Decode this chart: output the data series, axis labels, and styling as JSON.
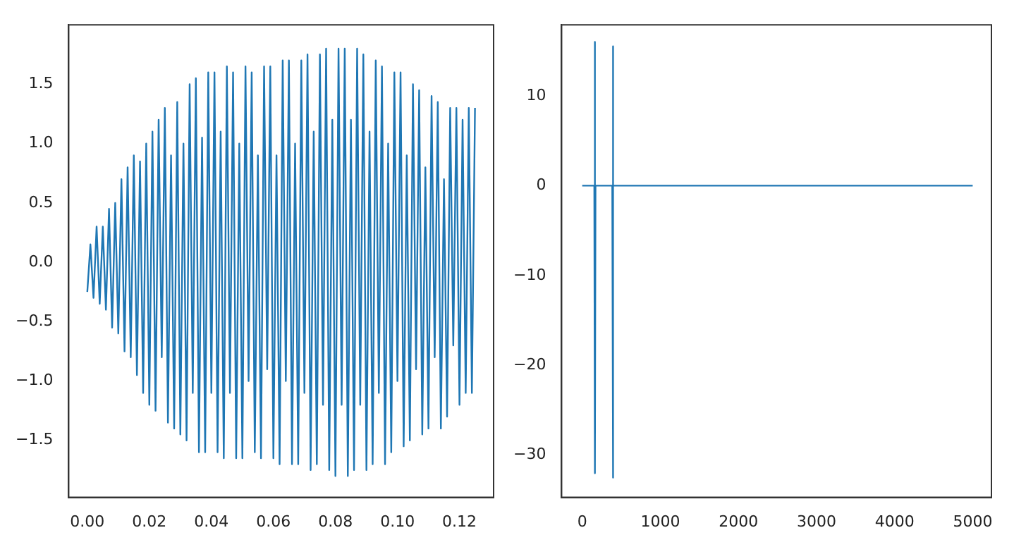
{
  "chart_data": [
    {
      "type": "line",
      "color": "#1f77b4",
      "x": [
        0,
        0.001,
        0.002,
        0.003,
        0.004,
        0.005,
        0.006,
        0.007,
        0.008,
        0.009,
        0.01,
        0.011,
        0.012,
        0.013,
        0.014,
        0.015,
        0.016,
        0.017,
        0.018,
        0.019,
        0.02,
        0.021,
        0.022,
        0.023,
        0.024,
        0.025,
        0.026,
        0.027,
        0.028,
        0.029,
        0.03,
        0.031,
        0.032,
        0.033,
        0.034,
        0.035,
        0.036,
        0.037,
        0.038,
        0.039,
        0.04,
        0.041,
        0.042,
        0.043,
        0.044,
        0.045,
        0.046,
        0.047,
        0.048,
        0.049,
        0.05,
        0.051,
        0.052,
        0.053,
        0.054,
        0.055,
        0.056,
        0.057,
        0.058,
        0.059,
        0.06,
        0.061,
        0.062,
        0.063,
        0.064,
        0.065,
        0.066,
        0.067,
        0.068,
        0.069,
        0.07,
        0.071,
        0.072,
        0.073,
        0.074,
        0.075,
        0.076,
        0.077,
        0.078,
        0.079,
        0.08,
        0.081,
        0.082,
        0.083,
        0.084,
        0.085,
        0.086,
        0.087,
        0.088,
        0.089,
        0.09,
        0.091,
        0.092,
        0.093,
        0.094,
        0.095,
        0.096,
        0.097,
        0.098,
        0.099,
        0.1,
        0.101,
        0.102,
        0.103,
        0.104,
        0.105,
        0.106,
        0.107,
        0.108,
        0.109,
        0.11,
        0.111,
        0.112,
        0.113,
        0.114,
        0.115,
        0.116,
        0.117,
        0.118,
        0.119,
        0.12,
        0.121,
        0.122,
        0.123,
        0.124,
        0.125
      ],
      "values": [
        -0.25,
        0.15,
        -0.3,
        0.3,
        -0.35,
        0.3,
        -0.4,
        0.45,
        -0.55,
        0.5,
        -0.6,
        0.7,
        -0.75,
        0.8,
        -0.8,
        0.9,
        -0.95,
        0.85,
        -1.1,
        1.0,
        -1.2,
        1.1,
        -1.25,
        1.2,
        -0.8,
        1.3,
        -1.35,
        0.9,
        -1.4,
        1.35,
        -1.45,
        1.0,
        -1.5,
        1.5,
        -1.1,
        1.55,
        -1.6,
        1.05,
        -1.6,
        1.6,
        -1.1,
        1.6,
        -1.6,
        1.1,
        -1.65,
        1.65,
        -1.1,
        1.6,
        -1.65,
        1.0,
        -1.65,
        1.65,
        -1.0,
        1.6,
        -1.6,
        0.9,
        -1.65,
        1.65,
        -0.9,
        1.65,
        -1.65,
        0.9,
        -1.7,
        1.7,
        -1.0,
        1.7,
        -1.7,
        1.0,
        -1.7,
        1.7,
        -1.1,
        1.75,
        -1.75,
        1.1,
        -1.7,
        1.75,
        -1.2,
        1.8,
        -1.75,
        1.2,
        -1.8,
        1.8,
        -1.2,
        1.8,
        -1.8,
        1.2,
        -1.75,
        1.8,
        -1.2,
        1.75,
        -1.75,
        1.1,
        -1.7,
        1.7,
        -1.1,
        1.65,
        -1.7,
        1.0,
        -1.6,
        1.6,
        -1.0,
        1.6,
        -1.55,
        0.9,
        -1.5,
        1.5,
        -0.9,
        1.45,
        -1.45,
        0.8,
        -1.4,
        1.4,
        -0.8,
        1.35,
        -1.4,
        0.7,
        -1.3,
        1.3,
        -0.7,
        1.3,
        -1.2,
        1.2,
        -1.1,
        1.3,
        -1.1,
        1.3
      ],
      "xlim": [
        -0.006,
        0.131
      ],
      "ylim": [
        -1.98,
        2.0
      ],
      "xticks": [
        {
          "value": 0,
          "label": "0.00"
        },
        {
          "value": 0.02,
          "label": "0.02"
        },
        {
          "value": 0.04,
          "label": "0.04"
        },
        {
          "value": 0.06,
          "label": "0.06"
        },
        {
          "value": 0.08,
          "label": "0.08"
        },
        {
          "value": 0.1,
          "label": "0.10"
        },
        {
          "value": 0.12,
          "label": "0.12"
        }
      ],
      "yticks": [
        {
          "value": -1.5,
          "label": "−1.5"
        },
        {
          "value": -1,
          "label": "−1.0"
        },
        {
          "value": -0.5,
          "label": "−0.5"
        },
        {
          "value": 0,
          "label": "0.0"
        },
        {
          "value": 0.5,
          "label": "0.5"
        },
        {
          "value": 1,
          "label": "1.0"
        },
        {
          "value": 1.5,
          "label": "1.5"
        }
      ],
      "grid": false
    },
    {
      "type": "line",
      "color": "#1f77b4",
      "x": [
        0,
        155,
        160,
        165,
        170,
        385,
        390,
        395,
        400,
        5000
      ],
      "values": [
        0,
        0,
        16,
        -32,
        0,
        0,
        15.5,
        -32.5,
        0,
        0
      ],
      "xlim": [
        -264,
        5240
      ],
      "ylim": [
        -34.7,
        17.9
      ],
      "xticks": [
        0,
        1000,
        2000,
        3000,
        4000,
        5000
      ],
      "yticks": [
        {
          "value": -30,
          "label": "−30"
        },
        {
          "value": -20,
          "label": "−20"
        },
        {
          "value": -10,
          "label": "−10"
        },
        0,
        10
      ],
      "grid": false
    }
  ]
}
